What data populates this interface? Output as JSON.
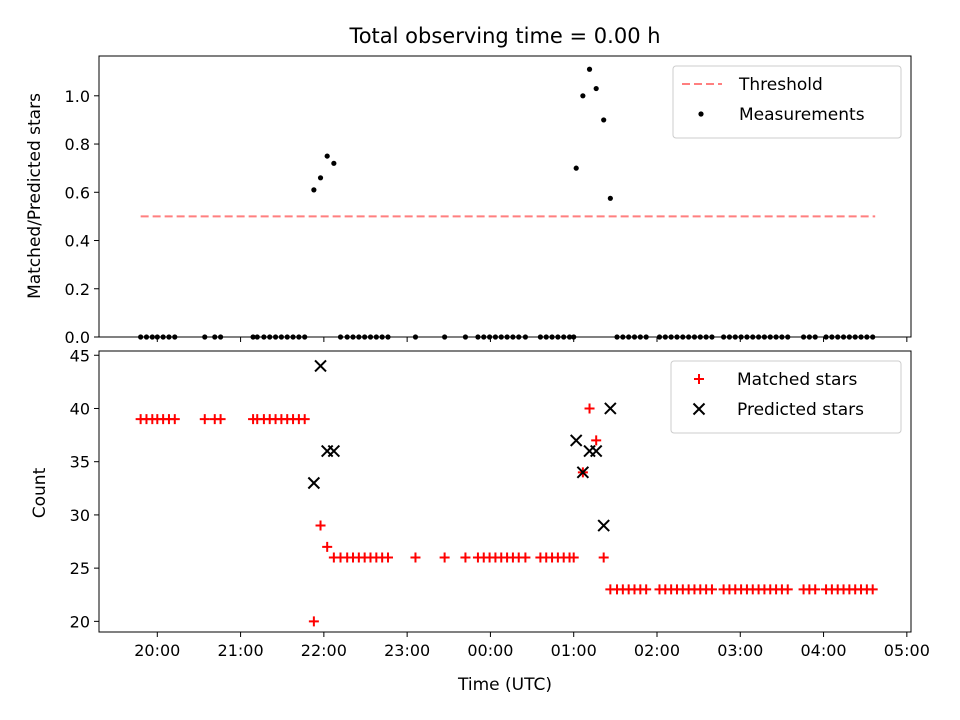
{
  "chart_data": [
    {
      "type": "scatter",
      "title": "Total observing time = 0.00 h",
      "ylabel": "Matched/Predicted stars",
      "xlabel": "",
      "x_ticks": [
        "20:00",
        "21:00",
        "22:00",
        "23:00",
        "00:00",
        "01:00",
        "02:00",
        "03:00",
        "04:00",
        "05:00"
      ],
      "y_ticks": [
        "0.0",
        "0.2",
        "0.4",
        "0.6",
        "0.8",
        "1.0"
      ],
      "xlim_hours": [
        19.3,
        29.05
      ],
      "ylim": [
        0.0,
        1.165
      ],
      "grid": false,
      "legend_position": "upper right",
      "series": [
        {
          "name": "Threshold",
          "kind": "dashed-line",
          "color": "#ff7f7f",
          "x_start_hours": 19.8,
          "x_end_hours": 28.62,
          "y": 0.5
        },
        {
          "name": "Measurements",
          "kind": "points",
          "color": "#000000",
          "points": [
            [
              19.8,
              0
            ],
            [
              19.87,
              0
            ],
            [
              19.94,
              0
            ],
            [
              20.0,
              0
            ],
            [
              20.07,
              0
            ],
            [
              20.14,
              0
            ],
            [
              20.21,
              0
            ],
            [
              20.57,
              0
            ],
            [
              20.69,
              0
            ],
            [
              20.76,
              0
            ],
            [
              21.15,
              0
            ],
            [
              21.2,
              0
            ],
            [
              21.28,
              0
            ],
            [
              21.35,
              0
            ],
            [
              21.42,
              0
            ],
            [
              21.49,
              0
            ],
            [
              21.56,
              0
            ],
            [
              21.63,
              0
            ],
            [
              21.7,
              0
            ],
            [
              21.77,
              0
            ],
            [
              21.88,
              0.61
            ],
            [
              21.96,
              0.66
            ],
            [
              22.04,
              0.75
            ],
            [
              22.12,
              0.72
            ],
            [
              22.2,
              0
            ],
            [
              22.28,
              0
            ],
            [
              22.35,
              0
            ],
            [
              22.42,
              0
            ],
            [
              22.49,
              0
            ],
            [
              22.56,
              0
            ],
            [
              22.63,
              0
            ],
            [
              22.7,
              0
            ],
            [
              22.77,
              0
            ],
            [
              23.1,
              0
            ],
            [
              23.45,
              0
            ],
            [
              23.7,
              0
            ],
            [
              23.85,
              0
            ],
            [
              23.92,
              0
            ],
            [
              23.99,
              0
            ],
            [
              24.06,
              0
            ],
            [
              24.13,
              0
            ],
            [
              24.2,
              0
            ],
            [
              24.27,
              0
            ],
            [
              24.34,
              0
            ],
            [
              24.42,
              0
            ],
            [
              24.6,
              0
            ],
            [
              24.67,
              0
            ],
            [
              24.74,
              0
            ],
            [
              24.81,
              0
            ],
            [
              24.88,
              0
            ],
            [
              24.95,
              0
            ],
            [
              25.0,
              0
            ],
            [
              25.03,
              0.7
            ],
            [
              25.11,
              1.0
            ],
            [
              25.19,
              1.11
            ],
            [
              25.27,
              1.03
            ],
            [
              25.36,
              0.9
            ],
            [
              25.44,
              0.575
            ],
            [
              25.52,
              0
            ],
            [
              25.59,
              0
            ],
            [
              25.66,
              0
            ],
            [
              25.73,
              0
            ],
            [
              25.8,
              0
            ],
            [
              25.87,
              0
            ],
            [
              26.03,
              0
            ],
            [
              26.1,
              0
            ],
            [
              26.17,
              0
            ],
            [
              26.24,
              0
            ],
            [
              26.31,
              0
            ],
            [
              26.38,
              0
            ],
            [
              26.45,
              0
            ],
            [
              26.52,
              0
            ],
            [
              26.59,
              0
            ],
            [
              26.66,
              0
            ],
            [
              26.8,
              0
            ],
            [
              26.87,
              0
            ],
            [
              26.94,
              0
            ],
            [
              27.01,
              0
            ],
            [
              27.08,
              0
            ],
            [
              27.15,
              0
            ],
            [
              27.22,
              0
            ],
            [
              27.29,
              0
            ],
            [
              27.36,
              0
            ],
            [
              27.43,
              0
            ],
            [
              27.5,
              0
            ],
            [
              27.57,
              0
            ],
            [
              27.76,
              0
            ],
            [
              27.83,
              0
            ],
            [
              27.9,
              0
            ],
            [
              28.03,
              0
            ],
            [
              28.1,
              0
            ],
            [
              28.17,
              0
            ],
            [
              28.24,
              0
            ],
            [
              28.31,
              0
            ],
            [
              28.38,
              0
            ],
            [
              28.45,
              0
            ],
            [
              28.52,
              0
            ],
            [
              28.59,
              0
            ]
          ]
        }
      ]
    },
    {
      "type": "scatter",
      "title": "",
      "xlabel": "Time (UTC)",
      "ylabel": "Count",
      "x_ticks": [
        "20:00",
        "21:00",
        "22:00",
        "23:00",
        "00:00",
        "01:00",
        "02:00",
        "03:00",
        "04:00",
        "05:00"
      ],
      "y_ticks": [
        "20",
        "25",
        "30",
        "35",
        "40",
        "45"
      ],
      "xlim_hours": [
        19.3,
        29.05
      ],
      "ylim": [
        19.0,
        45.4
      ],
      "grid": false,
      "legend_position": "upper right",
      "series": [
        {
          "name": "Matched stars",
          "marker": "plus",
          "color": "#ff0000",
          "points": [
            [
              19.8,
              39
            ],
            [
              19.87,
              39
            ],
            [
              19.94,
              39
            ],
            [
              20.0,
              39
            ],
            [
              20.07,
              39
            ],
            [
              20.14,
              39
            ],
            [
              20.21,
              39
            ],
            [
              20.57,
              39
            ],
            [
              20.69,
              39
            ],
            [
              20.76,
              39
            ],
            [
              21.15,
              39
            ],
            [
              21.2,
              39
            ],
            [
              21.28,
              39
            ],
            [
              21.35,
              39
            ],
            [
              21.42,
              39
            ],
            [
              21.49,
              39
            ],
            [
              21.56,
              39
            ],
            [
              21.63,
              39
            ],
            [
              21.7,
              39
            ],
            [
              21.77,
              39
            ],
            [
              21.88,
              20
            ],
            [
              21.96,
              29
            ],
            [
              22.04,
              27
            ],
            [
              22.12,
              26
            ],
            [
              22.2,
              26
            ],
            [
              22.28,
              26
            ],
            [
              22.35,
              26
            ],
            [
              22.42,
              26
            ],
            [
              22.49,
              26
            ],
            [
              22.56,
              26
            ],
            [
              22.63,
              26
            ],
            [
              22.7,
              26
            ],
            [
              22.77,
              26
            ],
            [
              23.1,
              26
            ],
            [
              23.45,
              26
            ],
            [
              23.7,
              26
            ],
            [
              23.85,
              26
            ],
            [
              23.92,
              26
            ],
            [
              23.99,
              26
            ],
            [
              24.06,
              26
            ],
            [
              24.13,
              26
            ],
            [
              24.2,
              26
            ],
            [
              24.27,
              26
            ],
            [
              24.34,
              26
            ],
            [
              24.42,
              26
            ],
            [
              24.6,
              26
            ],
            [
              24.67,
              26
            ],
            [
              24.74,
              26
            ],
            [
              24.81,
              26
            ],
            [
              24.88,
              26
            ],
            [
              24.95,
              26
            ],
            [
              25.0,
              26
            ],
            [
              25.11,
              34
            ],
            [
              25.19,
              40
            ],
            [
              25.27,
              37
            ],
            [
              25.36,
              26
            ],
            [
              25.44,
              23
            ],
            [
              25.52,
              23
            ],
            [
              25.59,
              23
            ],
            [
              25.66,
              23
            ],
            [
              25.73,
              23
            ],
            [
              25.8,
              23
            ],
            [
              25.87,
              23
            ],
            [
              26.03,
              23
            ],
            [
              26.1,
              23
            ],
            [
              26.17,
              23
            ],
            [
              26.24,
              23
            ],
            [
              26.31,
              23
            ],
            [
              26.38,
              23
            ],
            [
              26.45,
              23
            ],
            [
              26.52,
              23
            ],
            [
              26.59,
              23
            ],
            [
              26.66,
              23
            ],
            [
              26.8,
              23
            ],
            [
              26.87,
              23
            ],
            [
              26.94,
              23
            ],
            [
              27.01,
              23
            ],
            [
              27.08,
              23
            ],
            [
              27.15,
              23
            ],
            [
              27.22,
              23
            ],
            [
              27.29,
              23
            ],
            [
              27.36,
              23
            ],
            [
              27.43,
              23
            ],
            [
              27.5,
              23
            ],
            [
              27.57,
              23
            ],
            [
              27.76,
              23
            ],
            [
              27.83,
              23
            ],
            [
              27.9,
              23
            ],
            [
              28.03,
              23
            ],
            [
              28.1,
              23
            ],
            [
              28.17,
              23
            ],
            [
              28.24,
              23
            ],
            [
              28.31,
              23
            ],
            [
              28.38,
              23
            ],
            [
              28.45,
              23
            ],
            [
              28.52,
              23
            ],
            [
              28.59,
              23
            ]
          ]
        },
        {
          "name": "Predicted stars",
          "marker": "x",
          "color": "#000000",
          "points": [
            [
              21.88,
              33
            ],
            [
              21.96,
              44
            ],
            [
              22.04,
              36
            ],
            [
              22.12,
              36
            ],
            [
              25.03,
              37
            ],
            [
              25.11,
              34
            ],
            [
              25.19,
              36
            ],
            [
              25.27,
              36
            ],
            [
              25.36,
              29
            ],
            [
              25.44,
              40
            ]
          ]
        }
      ]
    }
  ]
}
